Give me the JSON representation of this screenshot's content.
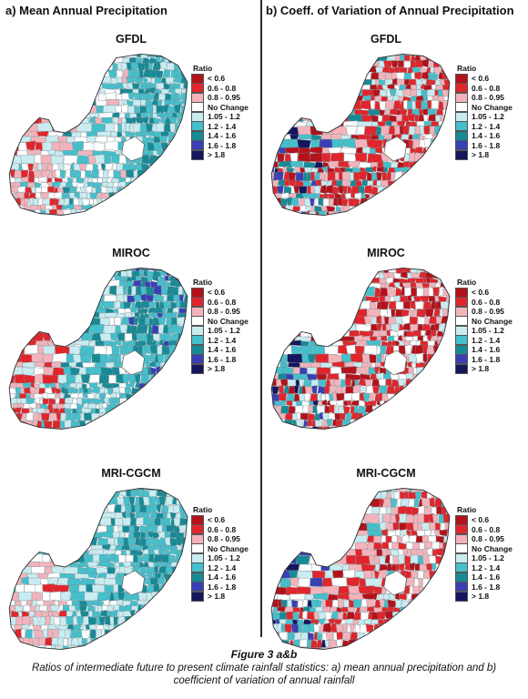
{
  "panels": {
    "a": {
      "title": "a) Mean Annual Precipitation"
    },
    "b": {
      "title": "b) Coeff. of Variation of Annual Precipitation"
    }
  },
  "models": [
    "GFDL",
    "MIROC",
    "MRI-CGCM"
  ],
  "legend": {
    "title": "Ratio",
    "items": [
      {
        "label": "< 0.6",
        "color": "#b3121b"
      },
      {
        "label": "0.6 - 0.8",
        "color": "#e0262c"
      },
      {
        "label": "0.8 - 0.95",
        "color": "#f4b3bb"
      },
      {
        "label": "No Change",
        "color": "#ffffff"
      },
      {
        "label": "1.05 - 1.2",
        "color": "#c9ecf1"
      },
      {
        "label": "1.2 - 1.4",
        "color": "#45bfcb"
      },
      {
        "label": "1.4 - 1.6",
        "color": "#178a96"
      },
      {
        "label": "1.6 - 1.8",
        "color": "#3a3fb3"
      },
      {
        "label": "> 1.8",
        "color": "#14165e"
      }
    ]
  },
  "caption": {
    "title": "Figure 3 a&b",
    "text": "Ratios of intermediate future to present climate rainfall statistics: a) mean annual precipitation and b) coefficient of variation of annual rainfall"
  }
}
